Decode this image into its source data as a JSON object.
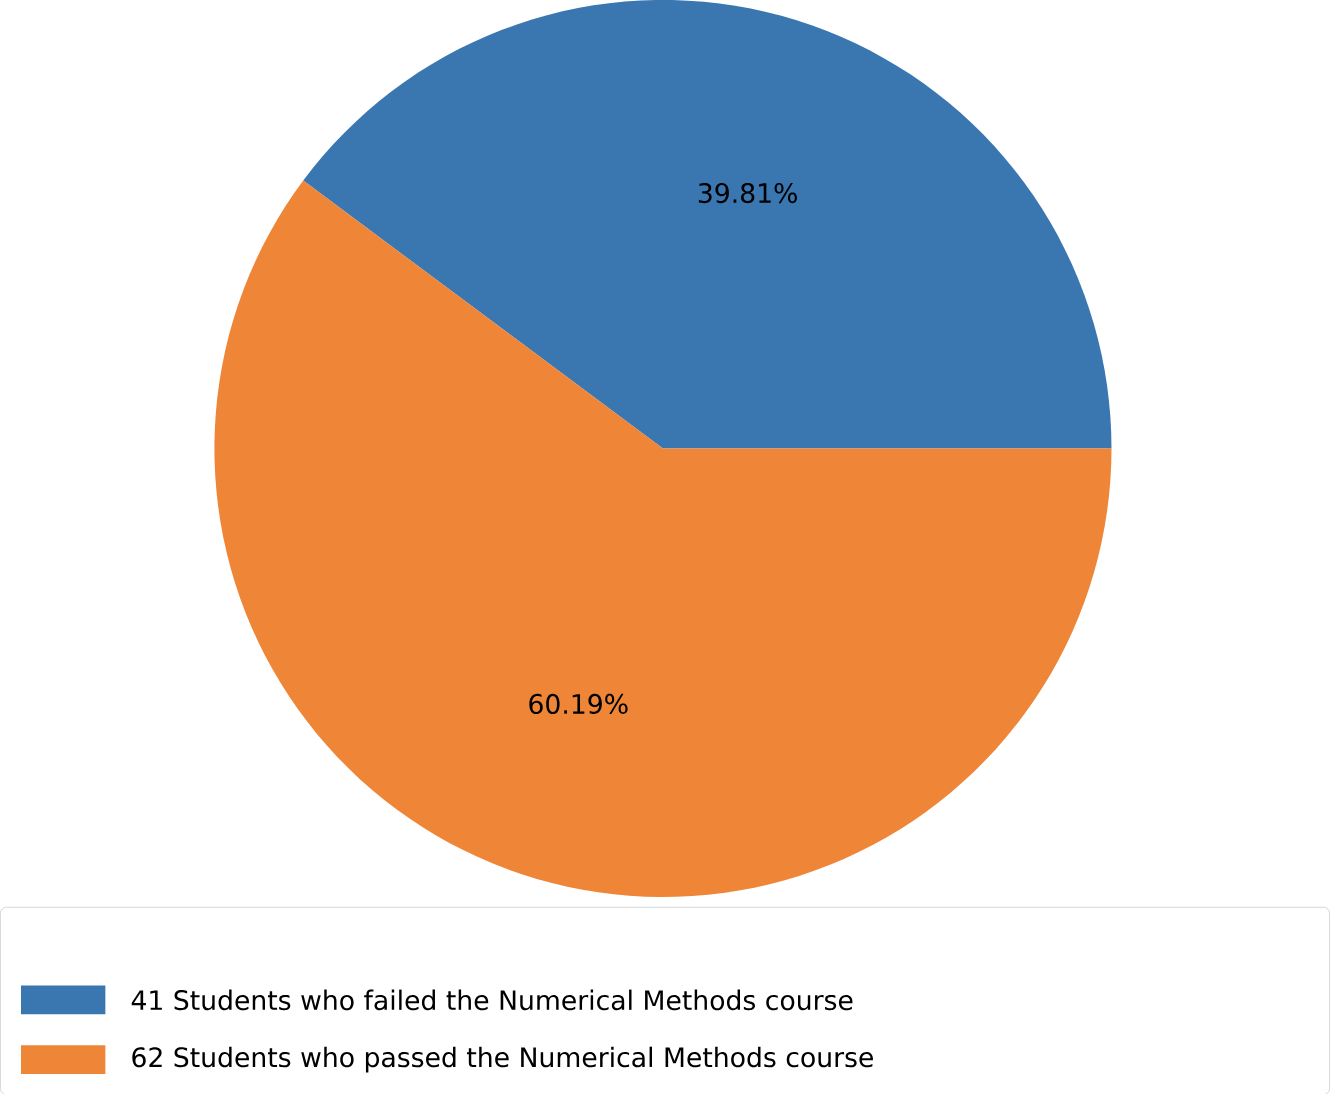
{
  "chart_data": {
    "type": "pie",
    "categories": [
      "41 Students who failed the Numerical Methods course",
      "62 Students who passed the Numerical Methods course"
    ],
    "values": [
      39.81,
      60.19
    ],
    "colors": [
      "#3a76af",
      "#ef8536"
    ],
    "value_labels": [
      "39.81%",
      "60.19%"
    ],
    "legend": "bottom"
  }
}
